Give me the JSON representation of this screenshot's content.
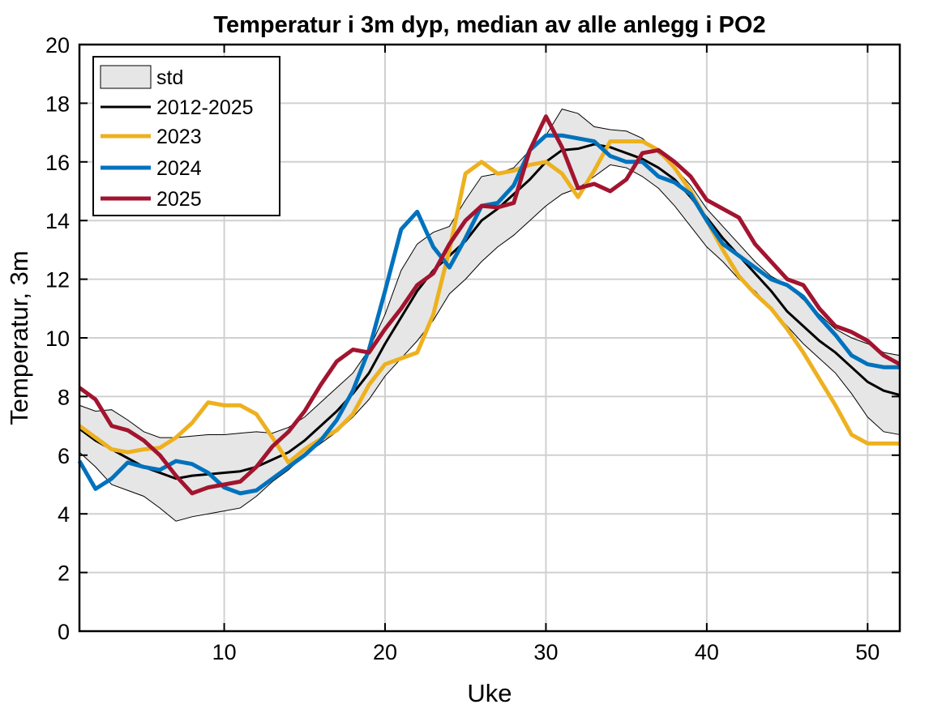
{
  "chart_data": {
    "type": "line",
    "title": "Temperatur i 3m dyp, median av alle anlegg i PO2",
    "xlabel": "Uke",
    "ylabel": "Temperatur, 3m",
    "xlim": [
      1,
      52
    ],
    "ylim": [
      0,
      20
    ],
    "xticks": [
      10,
      20,
      30,
      40,
      50
    ],
    "yticks": [
      0,
      2,
      4,
      6,
      8,
      10,
      12,
      14,
      16,
      18,
      20
    ],
    "grid": true,
    "legend_position": "top-left",
    "x": [
      1,
      2,
      3,
      4,
      5,
      6,
      7,
      8,
      9,
      10,
      11,
      12,
      13,
      14,
      15,
      16,
      17,
      18,
      19,
      20,
      21,
      22,
      23,
      24,
      25,
      26,
      27,
      28,
      29,
      30,
      31,
      32,
      33,
      34,
      35,
      36,
      37,
      38,
      39,
      40,
      41,
      42,
      43,
      44,
      45,
      46,
      47,
      48,
      49,
      50,
      51,
      52
    ],
    "band": {
      "name": "std",
      "color": "#e6e6e6",
      "upper": [
        7.7,
        7.5,
        7.55,
        7.2,
        6.8,
        6.6,
        6.6,
        6.65,
        6.7,
        6.7,
        6.75,
        6.8,
        6.75,
        6.95,
        7.3,
        7.8,
        8.3,
        8.8,
        9.6,
        10.8,
        12.3,
        13.2,
        13.6,
        13.8,
        14.7,
        15.5,
        15.6,
        15.8,
        16.4,
        16.9,
        17.8,
        17.65,
        17.2,
        17.1,
        17.05,
        16.8,
        16.3,
        15.8,
        15.2,
        14.4,
        13.8,
        13.2,
        12.6,
        12.1,
        11.8,
        11.3,
        10.8,
        10.3,
        10.0,
        9.8,
        9.5,
        9.4
      ],
      "lower": [
        6.1,
        5.6,
        5.0,
        4.8,
        4.6,
        4.2,
        3.75,
        3.9,
        4.0,
        4.1,
        4.2,
        4.6,
        5.1,
        5.5,
        6.0,
        6.4,
        6.8,
        7.3,
        7.9,
        8.7,
        9.3,
        9.9,
        10.6,
        11.5,
        12.0,
        12.6,
        13.1,
        13.5,
        14.0,
        14.5,
        14.9,
        15.1,
        15.5,
        15.9,
        15.8,
        15.5,
        15.1,
        14.5,
        13.8,
        13.1,
        12.6,
        12.0,
        11.6,
        11.0,
        10.4,
        9.8,
        9.3,
        8.8,
        8.1,
        7.3,
        6.8,
        6.7
      ]
    },
    "series": [
      {
        "name": "2012-2025",
        "color": "#000000",
        "values": [
          6.9,
          6.5,
          6.2,
          5.9,
          5.6,
          5.4,
          5.2,
          5.3,
          5.35,
          5.4,
          5.45,
          5.6,
          5.85,
          6.1,
          6.5,
          7.0,
          7.5,
          8.1,
          8.8,
          9.8,
          10.7,
          11.6,
          12.3,
          12.8,
          13.3,
          14.0,
          14.4,
          14.9,
          15.4,
          16.0,
          16.4,
          16.45,
          16.6,
          16.5,
          16.3,
          16.1,
          15.8,
          15.4,
          14.8,
          14.1,
          13.4,
          12.8,
          12.2,
          11.6,
          10.9,
          10.4,
          9.9,
          9.5,
          9.0,
          8.5,
          8.2,
          8.05
        ]
      },
      {
        "name": "2023",
        "color": "#EDB120",
        "values": [
          7.0,
          6.6,
          6.2,
          6.1,
          6.2,
          6.25,
          6.6,
          7.1,
          7.8,
          7.7,
          7.7,
          7.4,
          6.6,
          5.75,
          6.2,
          6.55,
          6.85,
          7.4,
          8.4,
          9.1,
          9.3,
          9.5,
          10.8,
          13.0,
          15.6,
          16.0,
          15.6,
          15.7,
          15.9,
          16.0,
          15.6,
          14.8,
          15.7,
          16.7,
          16.7,
          16.7,
          16.4,
          15.8,
          15.0,
          14.0,
          13.0,
          12.1,
          11.5,
          11.0,
          10.3,
          9.5,
          8.6,
          7.7,
          6.7,
          6.4,
          6.4,
          6.4
        ]
      },
      {
        "name": "2024",
        "color": "#0072BD",
        "values": [
          5.8,
          4.85,
          5.2,
          5.75,
          5.6,
          5.5,
          5.8,
          5.7,
          5.4,
          4.9,
          4.7,
          4.8,
          5.2,
          5.6,
          6.0,
          6.5,
          7.2,
          8.2,
          9.6,
          11.6,
          13.7,
          14.3,
          13.1,
          12.4,
          13.4,
          14.5,
          14.6,
          15.2,
          16.4,
          16.9,
          16.9,
          16.8,
          16.7,
          16.2,
          16.0,
          16.0,
          15.5,
          15.3,
          14.9,
          14.0,
          13.2,
          12.8,
          12.4,
          12.0,
          11.8,
          11.4,
          10.7,
          10.1,
          9.4,
          9.1,
          9.0,
          9.0
        ]
      },
      {
        "name": "2025",
        "color": "#A2142F",
        "values": [
          8.3,
          7.9,
          7.0,
          6.85,
          6.5,
          6.0,
          5.3,
          4.7,
          4.9,
          5.0,
          5.1,
          5.6,
          6.3,
          6.8,
          7.5,
          8.4,
          9.2,
          9.6,
          9.5,
          10.3,
          11.0,
          11.8,
          12.2,
          13.2,
          14.0,
          14.5,
          14.45,
          14.6,
          16.4,
          17.55,
          16.5,
          15.1,
          15.25,
          15.0,
          15.4,
          16.3,
          16.4,
          16.0,
          15.5,
          14.7,
          14.4,
          14.1,
          13.2,
          12.6,
          12.0,
          11.8,
          11.0,
          10.4,
          10.2,
          9.9,
          9.4,
          9.1
        ]
      }
    ]
  }
}
